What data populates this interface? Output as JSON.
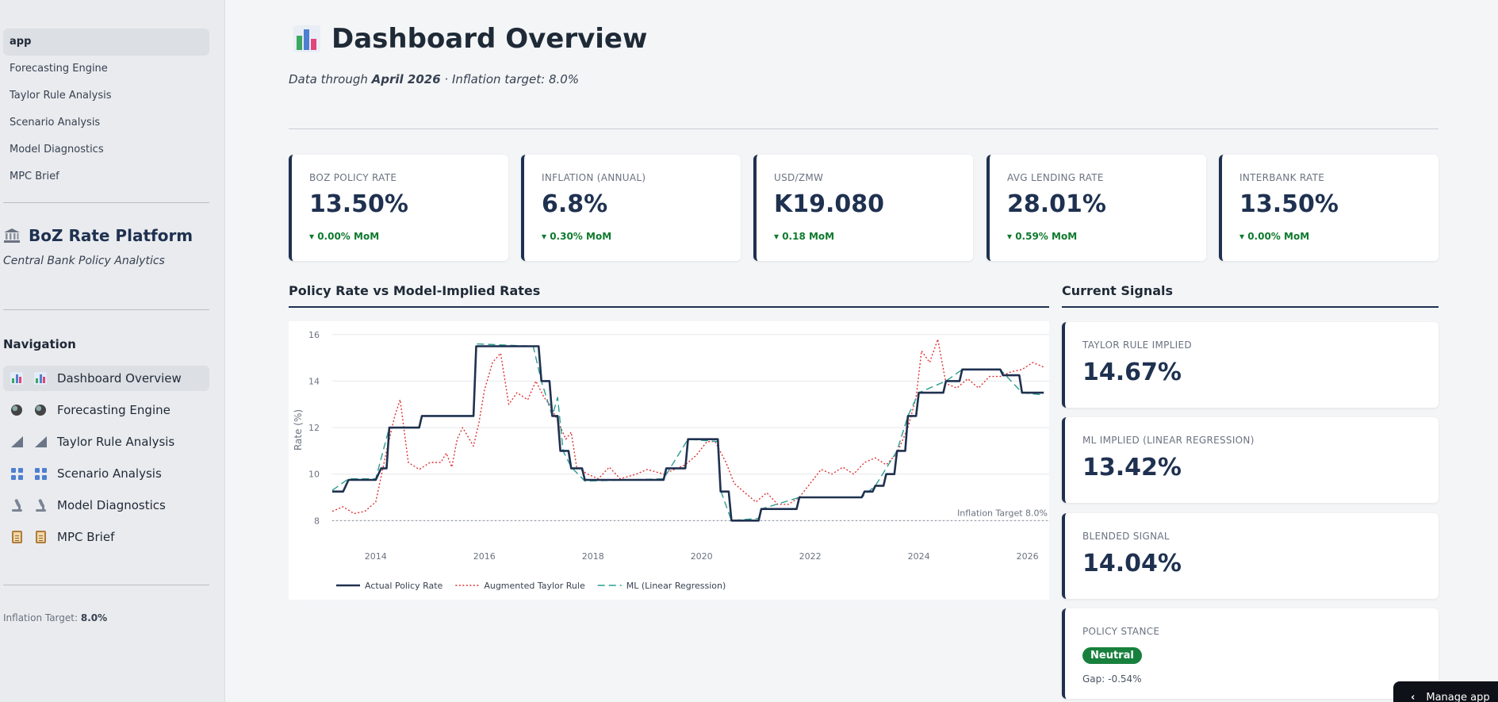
{
  "pages": [
    "app",
    "Forecasting Engine",
    "Taylor Rule Analysis",
    "Scenario Analysis",
    "Model Diagnostics",
    "MPC Brief"
  ],
  "brand": {
    "title": "BoZ Rate Platform",
    "subtitle": "Central Bank Policy Analytics",
    "icon": "bank-icon"
  },
  "nav": {
    "heading": "Navigation",
    "items": [
      {
        "label": "Dashboard Overview",
        "icon": "bar-chart-icon"
      },
      {
        "label": "Forecasting Engine",
        "icon": "crystal-ball-icon"
      },
      {
        "label": "Taylor Rule Analysis",
        "icon": "triangle-ruler-icon"
      },
      {
        "label": "Scenario Analysis",
        "icon": "grid-icon"
      },
      {
        "label": "Model Diagnostics",
        "icon": "microscope-icon"
      },
      {
        "label": "MPC Brief",
        "icon": "clipboard-icon"
      }
    ],
    "active": "Dashboard Overview"
  },
  "footer": {
    "label": "Inflation Target:",
    "value": "8.0%"
  },
  "header": {
    "title": "Dashboard Overview",
    "data_through_prefix": "Data through",
    "data_through": "April 2026",
    "target_text": "· Inflation target: 8.0%"
  },
  "kpis": [
    {
      "label": "BOZ POLICY RATE",
      "value": "13.50%",
      "change": "▾ 0.00% MoM"
    },
    {
      "label": "INFLATION (ANNUAL)",
      "value": "6.8%",
      "change": "▾ 0.30% MoM"
    },
    {
      "label": "USD/ZMW",
      "value": "K19.080",
      "change": "▾ 0.18 MoM"
    },
    {
      "label": "AVG LENDING RATE",
      "value": "28.01%",
      "change": "▾ 0.59% MoM"
    },
    {
      "label": "INTERBANK RATE",
      "value": "13.50%",
      "change": "▾ 0.00% MoM"
    }
  ],
  "sections": {
    "chart": "Policy Rate vs Model-Implied Rates",
    "signals": "Current Signals"
  },
  "signals": [
    {
      "label": "TAYLOR RULE IMPLIED",
      "value": "14.67%"
    },
    {
      "label": "ML IMPLIED (LINEAR REGRESSION)",
      "value": "13.42%"
    },
    {
      "label": "BLENDED SIGNAL",
      "value": "14.04%"
    },
    {
      "label": "POLICY STANCE",
      "badge": "Neutral",
      "gap": "Gap: -0.54%"
    }
  ],
  "colors": {
    "navy": "#1f3150",
    "taylor": "#e03131",
    "ml": "#2a9d8f",
    "positive": "#0f7a2e",
    "badge": "#17803d"
  },
  "manage_app": "Manage app",
  "chart_data": {
    "type": "line",
    "title": "",
    "xlabel": "",
    "ylabel": "Rate (%)",
    "xlim": [
      2013.2,
      2026.4
    ],
    "ylim": [
      7.5,
      16.3
    ],
    "x_ticks": [
      "2014",
      "2016",
      "2018",
      "2020",
      "2022",
      "2024",
      "2026"
    ],
    "y_ticks": [
      "8",
      "10",
      "12",
      "14",
      "16"
    ],
    "grid": true,
    "legend": "bottom-left",
    "reference_line": {
      "y": 8.0,
      "label": "Inflation Target 8.0%"
    },
    "series": [
      {
        "name": "Actual Policy Rate",
        "style": "solid",
        "points": [
          [
            2013.2,
            9.25
          ],
          [
            2013.4,
            9.25
          ],
          [
            2013.5,
            9.75
          ],
          [
            2014.0,
            9.75
          ],
          [
            2014.1,
            10.25
          ],
          [
            2014.2,
            10.25
          ],
          [
            2014.25,
            12.0
          ],
          [
            2014.8,
            12.0
          ],
          [
            2014.85,
            12.5
          ],
          [
            2015.8,
            12.5
          ],
          [
            2015.85,
            15.5
          ],
          [
            2017.0,
            15.5
          ],
          [
            2017.05,
            14.0
          ],
          [
            2017.2,
            14.0
          ],
          [
            2017.25,
            12.5
          ],
          [
            2017.35,
            12.5
          ],
          [
            2017.4,
            11.0
          ],
          [
            2017.55,
            11.0
          ],
          [
            2017.6,
            10.25
          ],
          [
            2017.8,
            10.25
          ],
          [
            2017.85,
            9.75
          ],
          [
            2019.3,
            9.75
          ],
          [
            2019.35,
            10.25
          ],
          [
            2019.7,
            10.25
          ],
          [
            2019.75,
            11.5
          ],
          [
            2020.3,
            11.5
          ],
          [
            2020.35,
            9.25
          ],
          [
            2020.5,
            9.25
          ],
          [
            2020.55,
            8.0
          ],
          [
            2021.05,
            8.0
          ],
          [
            2021.1,
            8.5
          ],
          [
            2021.75,
            8.5
          ],
          [
            2021.8,
            9.0
          ],
          [
            2022.95,
            9.0
          ],
          [
            2023.0,
            9.25
          ],
          [
            2023.15,
            9.25
          ],
          [
            2023.2,
            9.5
          ],
          [
            2023.35,
            9.5
          ],
          [
            2023.4,
            10.0
          ],
          [
            2023.55,
            10.0
          ],
          [
            2023.6,
            11.0
          ],
          [
            2023.75,
            11.0
          ],
          [
            2023.8,
            12.5
          ],
          [
            2023.95,
            12.5
          ],
          [
            2024.0,
            13.5
          ],
          [
            2024.45,
            13.5
          ],
          [
            2024.5,
            14.0
          ],
          [
            2024.75,
            14.0
          ],
          [
            2024.8,
            14.5
          ],
          [
            2025.5,
            14.5
          ],
          [
            2025.55,
            14.25
          ],
          [
            2025.85,
            14.25
          ],
          [
            2025.9,
            13.5
          ],
          [
            2026.3,
            13.5
          ]
        ]
      },
      {
        "name": "Augmented Taylor Rule",
        "style": "dotted",
        "points": [
          [
            2013.2,
            8.4
          ],
          [
            2013.4,
            8.6
          ],
          [
            2013.6,
            8.3
          ],
          [
            2013.8,
            8.4
          ],
          [
            2014.0,
            8.8
          ],
          [
            2014.2,
            11.0
          ],
          [
            2014.35,
            12.5
          ],
          [
            2014.45,
            13.2
          ],
          [
            2014.6,
            10.5
          ],
          [
            2014.8,
            10.2
          ],
          [
            2015.0,
            10.5
          ],
          [
            2015.2,
            10.5
          ],
          [
            2015.3,
            10.9
          ],
          [
            2015.4,
            10.3
          ],
          [
            2015.5,
            11.5
          ],
          [
            2015.6,
            12.0
          ],
          [
            2015.8,
            11.2
          ],
          [
            2015.9,
            12.2
          ],
          [
            2016.0,
            13.6
          ],
          [
            2016.15,
            14.8
          ],
          [
            2016.3,
            15.2
          ],
          [
            2016.45,
            13.0
          ],
          [
            2016.6,
            13.5
          ],
          [
            2016.8,
            13.2
          ],
          [
            2016.95,
            14.0
          ],
          [
            2017.1,
            13.3
          ],
          [
            2017.2,
            13.0
          ],
          [
            2017.35,
            12.3
          ],
          [
            2017.5,
            11.5
          ],
          [
            2017.6,
            11.8
          ],
          [
            2017.7,
            10.3
          ],
          [
            2017.9,
            10.0
          ],
          [
            2018.1,
            9.8
          ],
          [
            2018.3,
            10.3
          ],
          [
            2018.5,
            9.8
          ],
          [
            2018.8,
            10.0
          ],
          [
            2019.0,
            10.2
          ],
          [
            2019.3,
            10.0
          ],
          [
            2019.5,
            10.2
          ],
          [
            2019.7,
            10.4
          ],
          [
            2019.9,
            10.8
          ],
          [
            2020.1,
            11.4
          ],
          [
            2020.25,
            11.4
          ],
          [
            2020.45,
            10.5
          ],
          [
            2020.6,
            9.6
          ],
          [
            2020.8,
            9.2
          ],
          [
            2021.0,
            8.8
          ],
          [
            2021.2,
            9.2
          ],
          [
            2021.4,
            8.7
          ],
          [
            2021.6,
            8.7
          ],
          [
            2021.8,
            9.0
          ],
          [
            2022.0,
            9.6
          ],
          [
            2022.2,
            10.2
          ],
          [
            2022.4,
            10.0
          ],
          [
            2022.6,
            10.3
          ],
          [
            2022.8,
            10.0
          ],
          [
            2023.0,
            10.5
          ],
          [
            2023.2,
            10.7
          ],
          [
            2023.4,
            10.4
          ],
          [
            2023.6,
            10.9
          ],
          [
            2023.8,
            12.0
          ],
          [
            2023.95,
            13.3
          ],
          [
            2024.05,
            15.3
          ],
          [
            2024.2,
            14.8
          ],
          [
            2024.35,
            15.8
          ],
          [
            2024.5,
            13.9
          ],
          [
            2024.7,
            13.7
          ],
          [
            2024.9,
            14.1
          ],
          [
            2025.1,
            13.7
          ],
          [
            2025.3,
            14.2
          ],
          [
            2025.5,
            14.2
          ],
          [
            2025.7,
            14.4
          ],
          [
            2025.9,
            14.5
          ],
          [
            2026.1,
            14.8
          ],
          [
            2026.3,
            14.6
          ]
        ]
      },
      {
        "name": "ML (Linear Regression)",
        "style": "dashed",
        "points": [
          [
            2013.2,
            9.3
          ],
          [
            2013.5,
            9.8
          ],
          [
            2014.0,
            9.8
          ],
          [
            2014.25,
            12.0
          ],
          [
            2014.8,
            12.0
          ],
          [
            2014.85,
            12.5
          ],
          [
            2015.8,
            12.5
          ],
          [
            2015.85,
            15.6
          ],
          [
            2016.9,
            15.5
          ],
          [
            2017.05,
            14.0
          ],
          [
            2017.25,
            12.5
          ],
          [
            2017.35,
            13.3
          ],
          [
            2017.45,
            11.0
          ],
          [
            2017.6,
            10.3
          ],
          [
            2017.85,
            9.7
          ],
          [
            2019.3,
            9.8
          ],
          [
            2019.75,
            11.5
          ],
          [
            2020.3,
            11.4
          ],
          [
            2020.35,
            9.3
          ],
          [
            2020.55,
            8.0
          ],
          [
            2021.05,
            8.1
          ],
          [
            2021.1,
            8.5
          ],
          [
            2021.8,
            9.0
          ],
          [
            2022.95,
            9.0
          ],
          [
            2023.2,
            9.5
          ],
          [
            2023.6,
            11.0
          ],
          [
            2023.8,
            12.5
          ],
          [
            2024.0,
            13.5
          ],
          [
            2024.5,
            14.0
          ],
          [
            2024.8,
            14.5
          ],
          [
            2025.5,
            14.5
          ],
          [
            2025.9,
            13.5
          ],
          [
            2026.3,
            13.4
          ]
        ]
      }
    ]
  }
}
